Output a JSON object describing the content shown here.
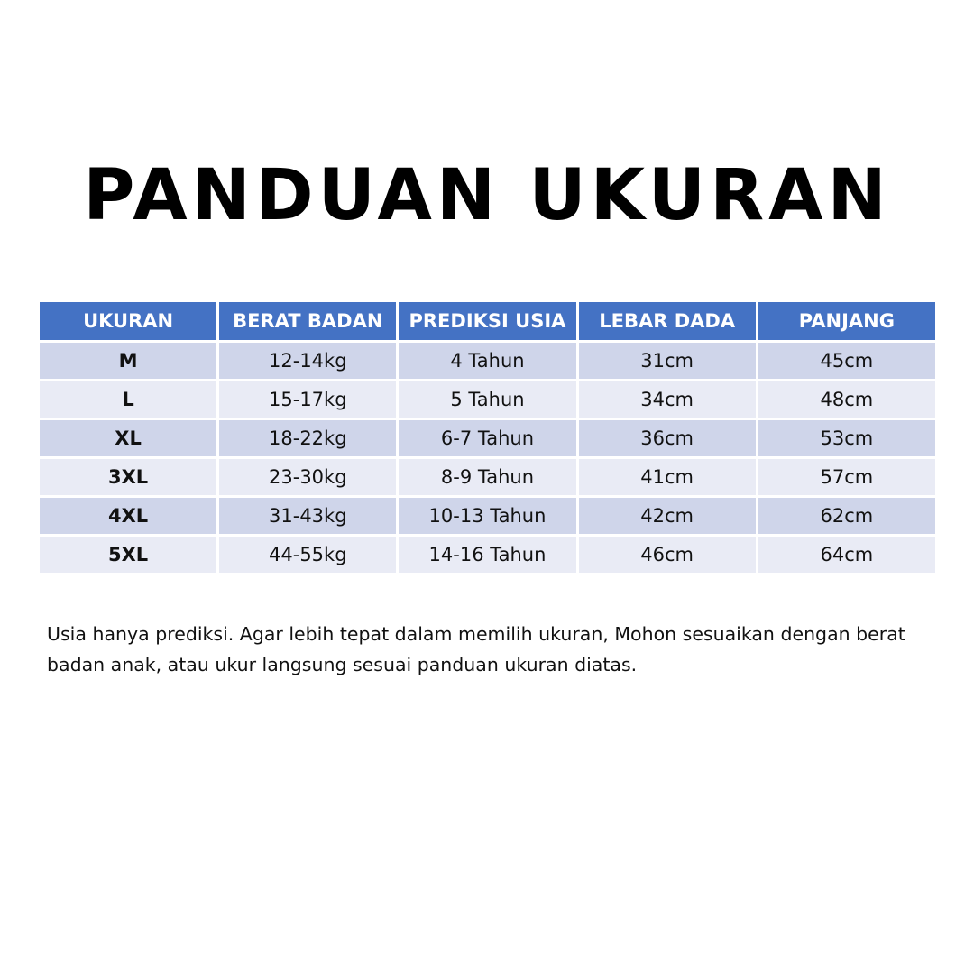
{
  "title": "PANDUAN UKURAN",
  "colors": {
    "header_bg": "#4472C4",
    "row_odd": "#CFD5EA",
    "row_even": "#E9EBF5"
  },
  "table": {
    "headers": [
      "UKURAN",
      "BERAT BADAN",
      "PREDIKSI USIA",
      "LEBAR DADA",
      "PANJANG"
    ],
    "rows": [
      [
        "M",
        "12-14kg",
        "4 Tahun",
        "31cm",
        "45cm"
      ],
      [
        "L",
        "15-17kg",
        "5 Tahun",
        "34cm",
        "48cm"
      ],
      [
        "XL",
        "18-22kg",
        "6-7 Tahun",
        "36cm",
        "53cm"
      ],
      [
        "3XL",
        "23-30kg",
        "8-9 Tahun",
        "41cm",
        "57cm"
      ],
      [
        "4XL",
        "31-43kg",
        "10-13 Tahun",
        "42cm",
        "62cm"
      ],
      [
        "5XL",
        "44-55kg",
        "14-16 Tahun",
        "46cm",
        "64cm"
      ]
    ]
  },
  "note": "Usia hanya prediksi. Agar lebih tepat dalam memilih ukuran, Mohon sesuaikan dengan berat badan anak, atau ukur langsung sesuai panduan ukuran diatas."
}
